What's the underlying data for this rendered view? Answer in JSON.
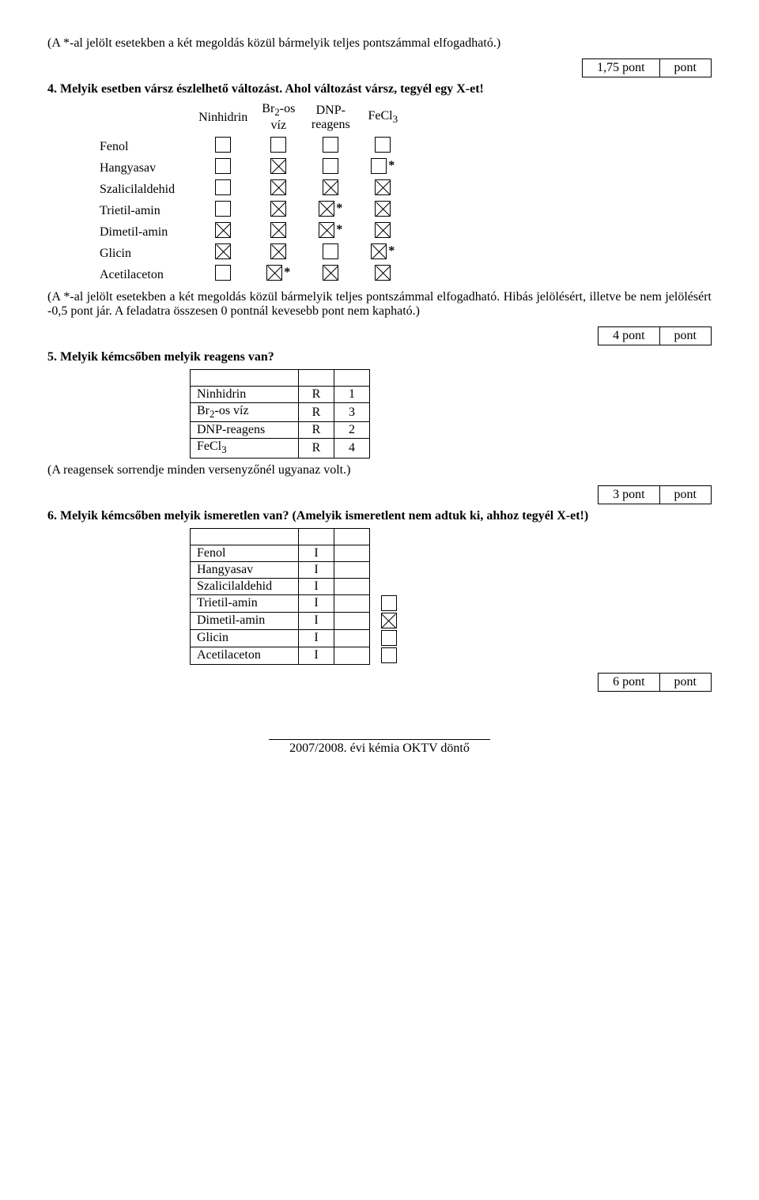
{
  "intro_note": "(A *-al jelölt esetekben a két megoldás közül bármelyik teljes pontszámmal elfogadható.)",
  "score_1_75": {
    "left": "1,75 pont",
    "right": "pont"
  },
  "q4": {
    "num": "4.",
    "text": "Melyik esetben vársz észlelhető változást. Ahol változást vársz, tegyél egy X-et!"
  },
  "grid_headers": [
    "Ninhidrin",
    "Br₂-os\nvíz",
    "DNP-\nreagens",
    "FeCl₃"
  ],
  "grid_rows": [
    {
      "name": "Fenol",
      "cells": [
        "",
        "",
        "",
        ""
      ],
      "stars": [
        "",
        "",
        "",
        ""
      ]
    },
    {
      "name": "Hangyasav",
      "cells": [
        "",
        "x",
        "",
        ""
      ],
      "stars": [
        "",
        "",
        "",
        "*"
      ]
    },
    {
      "name": "Szalicilaldehid",
      "cells": [
        "",
        "x",
        "x",
        "x"
      ],
      "stars": [
        "",
        "",
        "",
        ""
      ]
    },
    {
      "name": "Trietil-amin",
      "cells": [
        "",
        "x",
        "x",
        "x"
      ],
      "stars": [
        "",
        "",
        "*",
        ""
      ]
    },
    {
      "name": "Dimetil-amin",
      "cells": [
        "x",
        "x",
        "x",
        "x"
      ],
      "stars": [
        "",
        "",
        "*",
        ""
      ]
    },
    {
      "name": "Glicin",
      "cells": [
        "x",
        "x",
        "",
        "x"
      ],
      "stars": [
        "",
        "",
        "",
        "*"
      ]
    },
    {
      "name": "Acetilaceton",
      "cells": [
        "",
        "x",
        "x",
        "x"
      ],
      "stars": [
        "",
        "*",
        "",
        ""
      ]
    }
  ],
  "grid_footnote": "(A *-al jelölt esetekben a két megoldás közül bármelyik teljes pontszámmal elfogadható. Hibás jelölésért, illetve be nem jelölésért -0,5 pont jár. A feladatra összesen 0 pontnál kevesebb pont nem kapható.)",
  "score_4": {
    "left": "4 pont",
    "right": "pont"
  },
  "q5": {
    "num": "5.",
    "text": "Melyik kémcsőben melyik reagens van?"
  },
  "table5": [
    {
      "name": "Ninhidrin",
      "c2": "R",
      "c3": "1"
    },
    {
      "name": "Br₂-os víz",
      "c2": "R",
      "c3": "3"
    },
    {
      "name": "DNP-reagens",
      "c2": "R",
      "c3": "2"
    },
    {
      "name": "FeCl₃",
      "c2": "R",
      "c3": "4"
    }
  ],
  "table5_caption": "(A reagensek sorrendje minden versenyzőnél ugyanaz volt.)",
  "score_3": {
    "left": "3 pont",
    "right": "pont"
  },
  "q6": {
    "num": "6.",
    "text": "Melyik kémcsőben melyik ismeretlen van? (Amelyik ismeretlent nem adtuk ki, ahhoz tegyél X-et!)"
  },
  "table6": [
    {
      "name": "Fenol",
      "c2": "I",
      "c3": "",
      "box": null
    },
    {
      "name": "Hangyasav",
      "c2": "I",
      "c3": "",
      "box": null
    },
    {
      "name": "Szalicilaldehid",
      "c2": "I",
      "c3": "",
      "box": null
    },
    {
      "name": "Trietil-amin",
      "c2": "I",
      "c3": "",
      "box": ""
    },
    {
      "name": "Dimetil-amin",
      "c2": "I",
      "c3": "",
      "box": "x"
    },
    {
      "name": "Glicin",
      "c2": "I",
      "c3": "",
      "box": ""
    },
    {
      "name": "Acetilaceton",
      "c2": "I",
      "c3": "",
      "box": ""
    }
  ],
  "score_6": {
    "left": "6 pont",
    "right": "pont"
  },
  "footer": "2007/2008. évi kémia OKTV döntő"
}
